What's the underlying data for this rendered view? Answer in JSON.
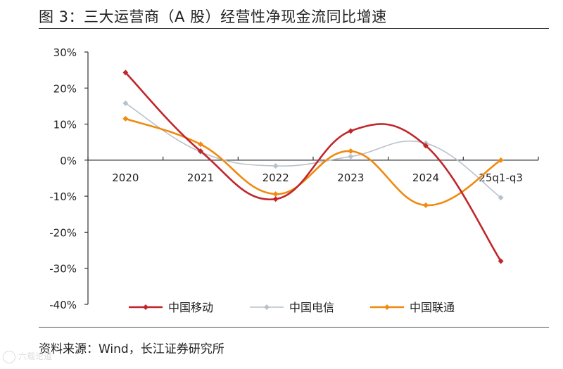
{
  "title": "图 3：三大运营商（A 股）经营性净现金流同比增速",
  "source": "资料来源：Wind，长江证券研究所",
  "watermark": "六载论道",
  "chart_data": {
    "type": "line",
    "title": "三大运营商（A 股）经营性净现金流同比增速",
    "categories": [
      "2020",
      "2021",
      "2022",
      "2023",
      "2024",
      "25q1-q3"
    ],
    "yTicks": [
      "30%",
      "20%",
      "10%",
      "0%",
      "-10%",
      "-20%",
      "-30%",
      "-40%"
    ],
    "ylim": [
      -40,
      30
    ],
    "unit": "%",
    "smooth": true,
    "series": [
      {
        "name": "中国移动",
        "color": "#c0262d",
        "values": [
          24.3,
          2.5,
          -10.8,
          8.1,
          4.0,
          -28.0
        ]
      },
      {
        "name": "中国电信",
        "color": "#b8c2cc",
        "values": [
          15.8,
          2.3,
          -1.6,
          1.0,
          4.7,
          -10.4
        ]
      },
      {
        "name": "中国联通",
        "color": "#f08a10",
        "values": [
          11.5,
          4.4,
          -9.4,
          2.5,
          -12.5,
          0.0
        ]
      }
    ],
    "legend": "bottom"
  }
}
